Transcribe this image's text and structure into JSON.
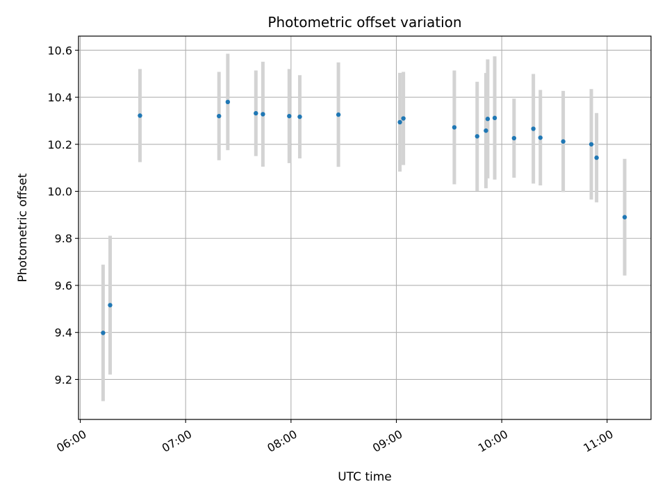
{
  "chart_data": {
    "type": "scatter",
    "title": "Photometric offset variation",
    "xlabel": "UTC time",
    "ylabel": "Photometric offset",
    "xlim": [
      "05:59",
      "11:25"
    ],
    "ylim": [
      9.03,
      10.66
    ],
    "x_ticks": [
      "06:00",
      "07:00",
      "08:00",
      "09:00",
      "10:00",
      "11:00"
    ],
    "y_ticks": [
      9.2,
      9.4,
      9.6,
      9.8,
      10.0,
      10.2,
      10.4,
      10.6
    ],
    "y_tick_labels": [
      "9.2",
      "9.4",
      "9.6",
      "9.8",
      "10.0",
      "10.2",
      "10.4",
      "10.6"
    ],
    "grid": true,
    "colors": {
      "point": "#1f77b4",
      "errorbar": "#d3d3d3",
      "grid": "#b0b0b0"
    },
    "points": [
      {
        "time": "06:13",
        "y": 9.398,
        "err": 0.29
      },
      {
        "time": "06:17",
        "y": 9.516,
        "err": 0.295
      },
      {
        "time": "06:34",
        "y": 10.322,
        "err": 0.198
      },
      {
        "time": "07:19",
        "y": 10.32,
        "err": 0.188
      },
      {
        "time": "07:24",
        "y": 10.38,
        "err": 0.205
      },
      {
        "time": "07:40",
        "y": 10.332,
        "err": 0.182
      },
      {
        "time": "07:44",
        "y": 10.328,
        "err": 0.223
      },
      {
        "time": "07:59",
        "y": 10.32,
        "err": 0.2
      },
      {
        "time": "08:05",
        "y": 10.317,
        "err": 0.177
      },
      {
        "time": "08:27",
        "y": 10.326,
        "err": 0.222
      },
      {
        "time": "09:02",
        "y": 10.294,
        "err": 0.21
      },
      {
        "time": "09:04",
        "y": 10.31,
        "err": 0.198
      },
      {
        "time": "09:33",
        "y": 10.272,
        "err": 0.242
      },
      {
        "time": "09:46",
        "y": 10.234,
        "err": 0.232
      },
      {
        "time": "09:51",
        "y": 10.258,
        "err": 0.245
      },
      {
        "time": "09:52",
        "y": 10.308,
        "err": 0.253
      },
      {
        "time": "09:56",
        "y": 10.312,
        "err": 0.262
      },
      {
        "time": "10:07",
        "y": 10.226,
        "err": 0.168
      },
      {
        "time": "10:18",
        "y": 10.266,
        "err": 0.233
      },
      {
        "time": "10:22",
        "y": 10.228,
        "err": 0.203
      },
      {
        "time": "10:35",
        "y": 10.212,
        "err": 0.215
      },
      {
        "time": "10:51",
        "y": 10.2,
        "err": 0.235
      },
      {
        "time": "10:54",
        "y": 10.143,
        "err": 0.19
      },
      {
        "time": "11:10",
        "y": 9.89,
        "err": 0.248
      }
    ]
  }
}
